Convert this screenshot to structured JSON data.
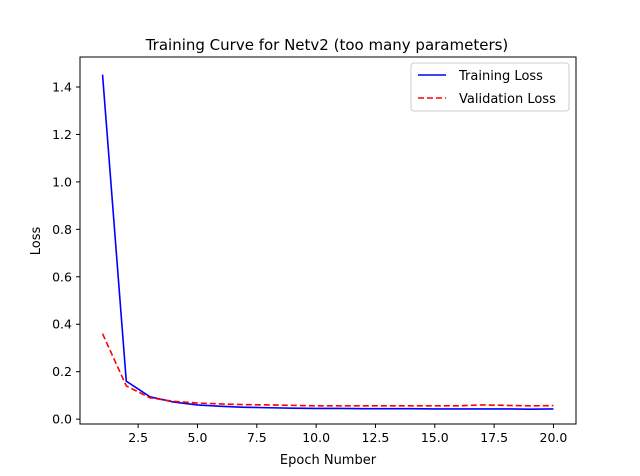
{
  "chart_data": {
    "type": "line",
    "title": "Training Curve for Netv2 (too many parameters)",
    "xlabel": "Epoch Number",
    "ylabel": "Loss",
    "xlim": [
      0.05,
      20.95
    ],
    "ylim": [
      -0.0205,
      1.5265
    ],
    "xticks": [
      2.5,
      5.0,
      7.5,
      10.0,
      12.5,
      15.0,
      17.5,
      20.0
    ],
    "xtick_labels": [
      "2.5",
      "5.0",
      "7.5",
      "10.0",
      "12.5",
      "15.0",
      "17.5",
      "20.0"
    ],
    "yticks": [
      0.0,
      0.2,
      0.4,
      0.6,
      0.8,
      1.0,
      1.2,
      1.4
    ],
    "ytick_labels": [
      "0.0",
      "0.2",
      "0.4",
      "0.6",
      "0.8",
      "1.0",
      "1.2",
      "1.4"
    ],
    "grid": false,
    "legend_position": "top-right",
    "x": [
      1,
      2,
      3,
      4,
      5,
      6,
      7,
      8,
      9,
      10,
      11,
      12,
      13,
      14,
      15,
      16,
      17,
      18,
      19,
      20
    ],
    "series": [
      {
        "name": "Training Loss",
        "color": "#0000ff",
        "style": "solid",
        "values": [
          1.452,
          0.16,
          0.094,
          0.072,
          0.06,
          0.054,
          0.05,
          0.048,
          0.046,
          0.045,
          0.045,
          0.044,
          0.044,
          0.044,
          0.043,
          0.043,
          0.043,
          0.043,
          0.042,
          0.043
        ]
      },
      {
        "name": "Validation Loss",
        "color": "#ff0000",
        "style": "dashed",
        "values": [
          0.36,
          0.14,
          0.09,
          0.075,
          0.068,
          0.064,
          0.061,
          0.06,
          0.058,
          0.056,
          0.056,
          0.056,
          0.056,
          0.056,
          0.056,
          0.056,
          0.06,
          0.058,
          0.056,
          0.057
        ]
      }
    ]
  }
}
